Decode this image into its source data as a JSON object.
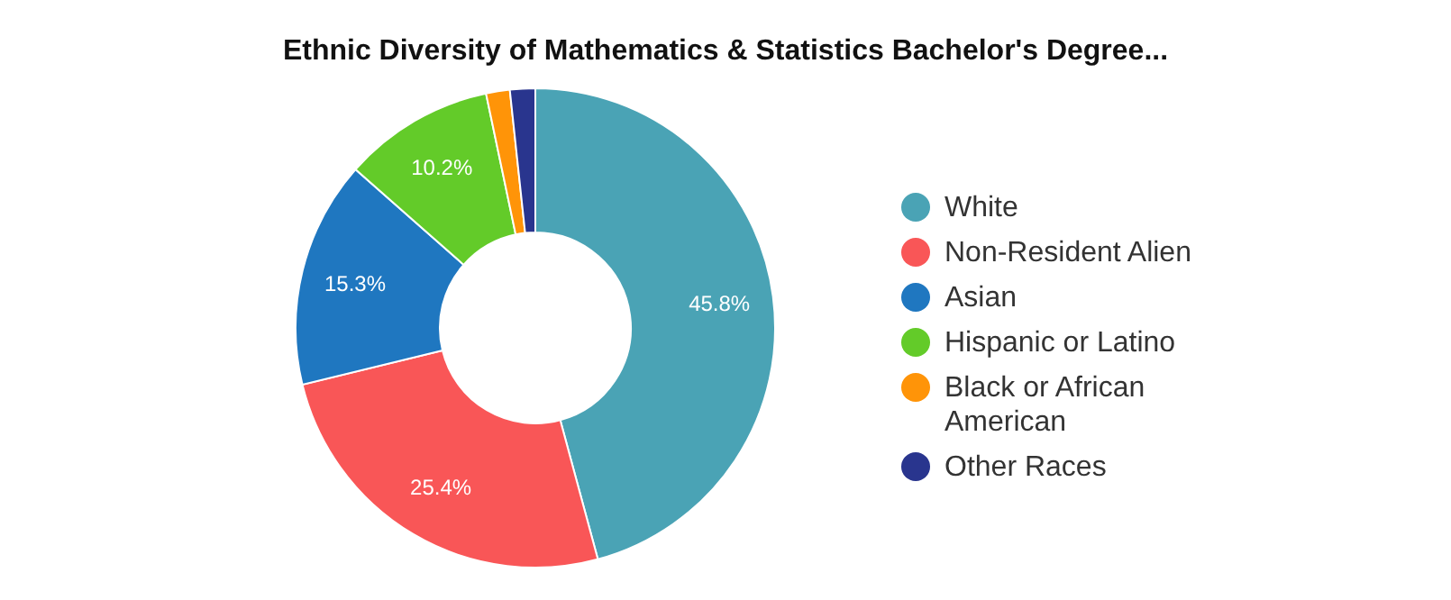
{
  "chart_data": {
    "type": "donut",
    "title": "Ethnic Diversity of Mathematics & Statistics Bachelor's Degree...",
    "categories": [
      "White",
      "Non-Resident Alien",
      "Asian",
      "Hispanic or Latino",
      "Black or African American",
      "Other Races"
    ],
    "values": [
      45.8,
      25.4,
      15.3,
      10.2,
      1.6,
      1.7
    ],
    "colors": [
      "#4aa3b5",
      "#f95657",
      "#1f77c0",
      "#63cb29",
      "#ff9408",
      "#29358e"
    ],
    "value_labels": [
      "45.8%",
      "25.4%",
      "15.3%",
      "10.2%",
      null,
      null
    ],
    "legend": "right"
  }
}
